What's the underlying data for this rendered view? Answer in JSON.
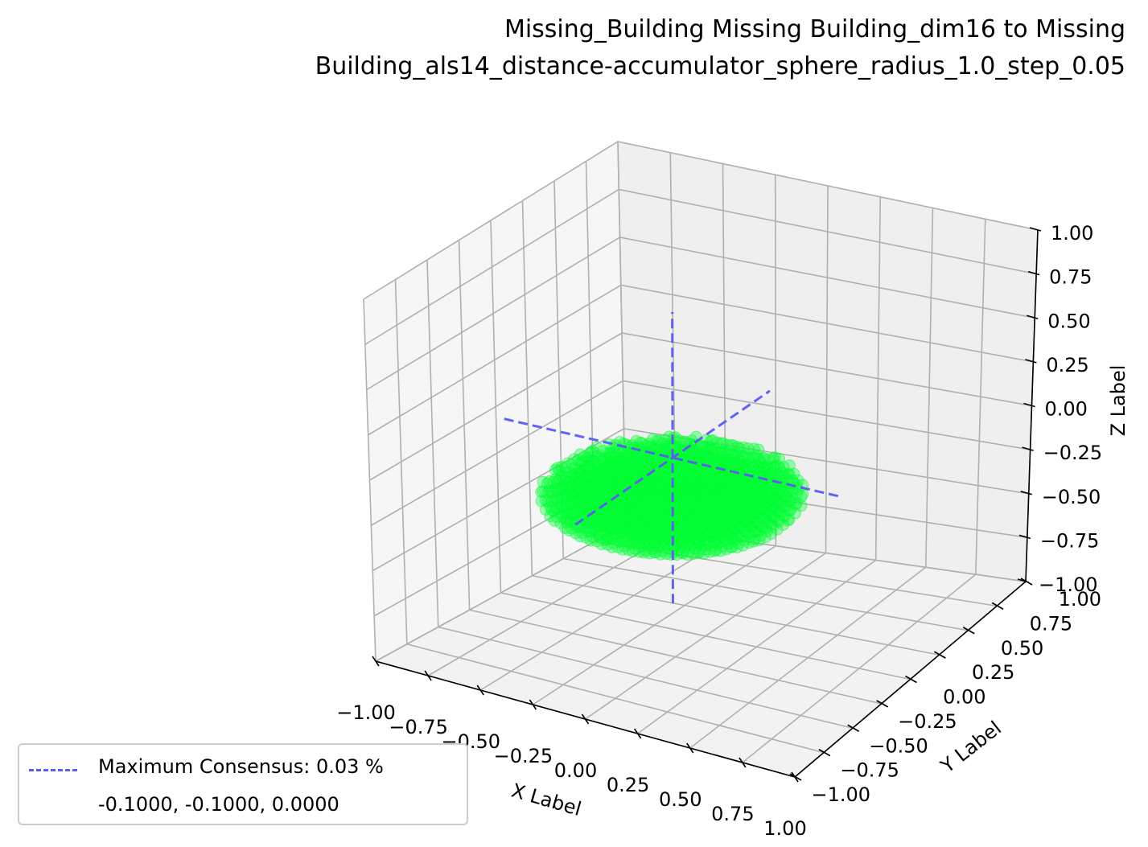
{
  "title_line1": "Missing_Building Missing Building_dim16 to Missing",
  "title_line2": "Building_als14_distance-accumulator_sphere_radius_1.0_step_0.05",
  "chart_data": {
    "type": "scatter",
    "projection": "3d",
    "xlabel": "X Label",
    "ylabel": "Y Label",
    "zlabel": "Z Label",
    "xlim": [
      -1.0,
      1.0
    ],
    "ylim": [
      -1.0,
      1.0
    ],
    "zlim": [
      -1.0,
      1.0
    ],
    "x_ticks": [
      "−1.00",
      "−0.75",
      "−0.50",
      "−0.25",
      "0.00",
      "0.25",
      "0.50",
      "0.75",
      "1.00"
    ],
    "y_ticks": [
      "−1.00",
      "−0.75",
      "−0.50",
      "−0.25",
      "0.00",
      "0.25",
      "0.50",
      "0.75",
      "1.00"
    ],
    "z_ticks": [
      "−1.00",
      "−0.75",
      "−0.50",
      "−0.25",
      "0.00",
      "0.25",
      "0.50",
      "0.75",
      "1.00"
    ],
    "grid": true,
    "point_cloud": {
      "shape": "flattened sphere",
      "center": [
        -0.1,
        -0.1,
        -0.2
      ],
      "radius_xy": 0.55,
      "z_range": [
        -0.35,
        -0.05
      ],
      "step": 0.05,
      "color": "#00ff33"
    },
    "consensus_axes": {
      "center": [
        -0.1,
        -0.1,
        0.0
      ],
      "color": "#5b5bf0",
      "style": "dashed"
    },
    "legend": {
      "placement": "lower-left",
      "entries": [
        "Maximum Consensus: 0.03 %",
        "-0.1000, -0.1000, 0.0000"
      ]
    }
  }
}
